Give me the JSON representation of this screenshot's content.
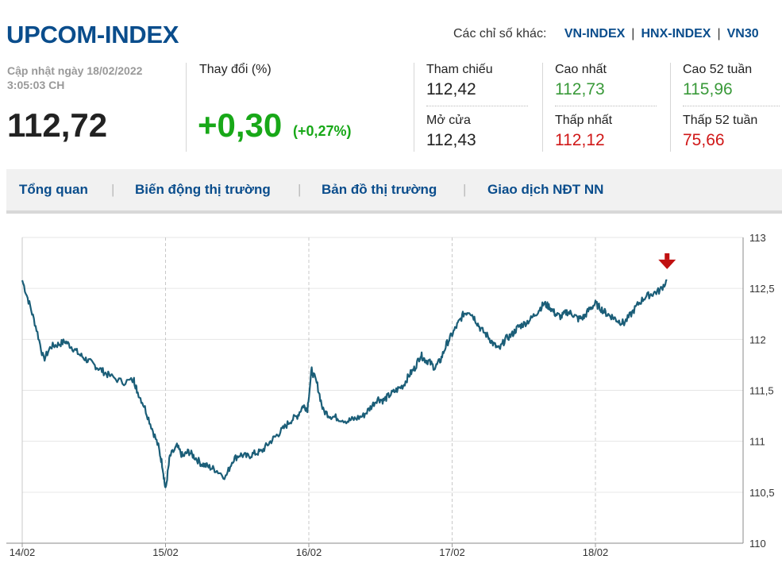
{
  "header": {
    "title": "UPCOM-INDEX",
    "other_label": "Các chỉ số khác:",
    "links": [
      "VN-INDEX",
      "HNX-INDEX",
      "VN30"
    ]
  },
  "summary": {
    "updated_line1": "Cập nhật ngày 18/02/2022",
    "updated_line2": "3:05:03 CH",
    "value": "112,72",
    "change_label": "Thay đổi (%)",
    "change": "+0,30",
    "change_pct": "(+0,27%)",
    "ref_label": "Tham chiếu",
    "ref": "112,42",
    "open_label": "Mở cửa",
    "open": "112,43",
    "high_label": "Cao nhất",
    "high": "112,73",
    "low_label": "Thấp nhất",
    "low": "112,12",
    "high52_label": "Cao 52 tuần",
    "high52": "115,96",
    "low52_label": "Thấp 52 tuần",
    "low52": "75,66"
  },
  "tabs": [
    "Tổng quan",
    "Biến động thị trường",
    "Bản đồ thị trường",
    "Giao dịch NĐT NN"
  ],
  "colors": {
    "accent": "#0a4d8c",
    "up": "#18a818",
    "down": "#d01818",
    "line": "#1b5e78",
    "marker": "#c01010"
  },
  "chart_data": {
    "type": "line",
    "ylim": [
      110,
      113
    ],
    "y_ticks": [
      "113",
      "112,5",
      "112",
      "111,5",
      "111",
      "110,5",
      "110"
    ],
    "x_ticks": [
      "14/02",
      "15/02",
      "16/02",
      "17/02",
      "18/02"
    ],
    "series": [
      {
        "points": [
          [
            0.0,
            112.58
          ],
          [
            0.05,
            112.35
          ],
          [
            0.1,
            112.1
          ],
          [
            0.15,
            111.8
          ],
          [
            0.2,
            111.93
          ],
          [
            0.25,
            111.95
          ],
          [
            0.3,
            111.98
          ],
          [
            0.35,
            111.92
          ],
          [
            0.4,
            111.85
          ],
          [
            0.45,
            111.8
          ],
          [
            0.5,
            111.75
          ],
          [
            0.55,
            111.7
          ],
          [
            0.6,
            111.65
          ],
          [
            0.7,
            111.58
          ],
          [
            0.78,
            111.6
          ],
          [
            0.8,
            111.5
          ],
          [
            0.85,
            111.35
          ],
          [
            0.9,
            111.15
          ],
          [
            0.95,
            110.95
          ],
          [
            0.98,
            110.75
          ],
          [
            1.0,
            110.52
          ],
          [
            1.03,
            110.85
          ],
          [
            1.08,
            110.95
          ],
          [
            1.12,
            110.85
          ],
          [
            1.16,
            110.9
          ],
          [
            1.2,
            110.85
          ],
          [
            1.25,
            110.78
          ],
          [
            1.3,
            110.75
          ],
          [
            1.35,
            110.72
          ],
          [
            1.42,
            110.65
          ],
          [
            1.47,
            110.82
          ],
          [
            1.52,
            110.87
          ],
          [
            1.57,
            110.85
          ],
          [
            1.62,
            110.88
          ],
          [
            1.67,
            110.9
          ],
          [
            1.72,
            110.98
          ],
          [
            1.77,
            111.05
          ],
          [
            1.82,
            111.12
          ],
          [
            1.87,
            111.2
          ],
          [
            1.92,
            111.25
          ],
          [
            1.96,
            111.35
          ],
          [
            1.99,
            111.32
          ],
          [
            2.02,
            111.7
          ],
          [
            2.06,
            111.55
          ],
          [
            2.1,
            111.3
          ],
          [
            2.15,
            111.25
          ],
          [
            2.2,
            111.23
          ],
          [
            2.27,
            111.2
          ],
          [
            2.32,
            111.22
          ],
          [
            2.38,
            111.25
          ],
          [
            2.43,
            111.33
          ],
          [
            2.48,
            111.42
          ],
          [
            2.52,
            111.4
          ],
          [
            2.56,
            111.45
          ],
          [
            2.61,
            111.5
          ],
          [
            2.66,
            111.55
          ],
          [
            2.7,
            111.65
          ],
          [
            2.74,
            111.72
          ],
          [
            2.78,
            111.85
          ],
          [
            2.81,
            111.8
          ],
          [
            2.84,
            111.78
          ],
          [
            2.88,
            111.72
          ],
          [
            2.92,
            111.8
          ],
          [
            2.96,
            111.95
          ],
          [
            3.0,
            112.05
          ],
          [
            3.04,
            112.15
          ],
          [
            3.08,
            112.25
          ],
          [
            3.12,
            112.28
          ],
          [
            3.16,
            112.2
          ],
          [
            3.2,
            112.1
          ],
          [
            3.25,
            112.03
          ],
          [
            3.29,
            111.95
          ],
          [
            3.33,
            111.9
          ],
          [
            3.37,
            112.0
          ],
          [
            3.42,
            112.05
          ],
          [
            3.46,
            112.12
          ],
          [
            3.5,
            112.15
          ],
          [
            3.55,
            112.2
          ],
          [
            3.6,
            112.28
          ],
          [
            3.64,
            112.35
          ],
          [
            3.68,
            112.32
          ],
          [
            3.72,
            112.25
          ],
          [
            3.76,
            112.22
          ],
          [
            3.8,
            112.27
          ],
          [
            3.84,
            112.25
          ],
          [
            3.88,
            112.2
          ],
          [
            3.92,
            112.22
          ],
          [
            3.96,
            112.3
          ],
          [
            4.0,
            112.35
          ],
          [
            4.04,
            112.3
          ],
          [
            4.08,
            112.25
          ],
          [
            4.12,
            112.22
          ],
          [
            4.16,
            112.18
          ],
          [
            4.2,
            112.16
          ],
          [
            4.25,
            112.25
          ],
          [
            4.3,
            112.35
          ],
          [
            4.35,
            112.42
          ],
          [
            4.4,
            112.45
          ],
          [
            4.45,
            112.48
          ],
          [
            4.5,
            112.58
          ]
        ]
      }
    ]
  }
}
